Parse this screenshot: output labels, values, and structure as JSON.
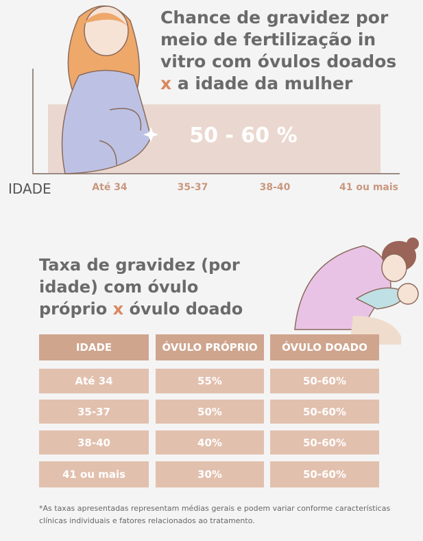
{
  "header": {
    "title_start": "Chance de gravidez por meio de fertilização in vitro com óvulos doados",
    "title_x": "x",
    "title_end": "a idade da mulher"
  },
  "band": {
    "label": "50 - 60 %",
    "axis_label": "IDADE",
    "categories": [
      "Até 34",
      "35-37",
      "38-40",
      "41 ou mais"
    ]
  },
  "section": {
    "title_start": "Taxa de gravidez (por idade) com óvulo próprio",
    "title_x": "x",
    "title_end": "óvulo doado"
  },
  "table": {
    "columns": [
      "IDADE",
      "ÓVULO PRÓPRIO",
      "ÓVULO DOADO"
    ],
    "rows": [
      [
        "Até 34",
        "55%",
        "50-60%"
      ],
      [
        "35-37",
        "50%",
        "50-60%"
      ],
      [
        "38-40",
        "40%",
        "50-60%"
      ],
      [
        "41 ou mais",
        "30%",
        "50-60%"
      ]
    ]
  },
  "footnote": "*As taxas apresentadas representam médias gerais e podem variar conforme características clínicas individuais e fatores relacionados ao tratamento."
}
